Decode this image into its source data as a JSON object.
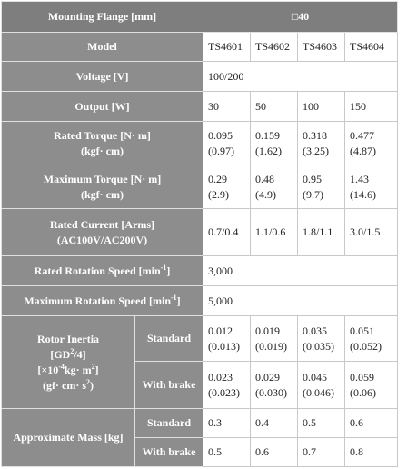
{
  "table": {
    "rows": [
      {
        "header": [
          [
            "Mounting Flange [mm]"
          ]
        ],
        "cells": [
          [
            "□40"
          ]
        ]
      },
      {
        "header": [
          [
            "Model"
          ]
        ],
        "cells": [
          [
            "TS4601"
          ],
          [
            "TS4602"
          ],
          [
            "TS4603"
          ],
          [
            "TS4604"
          ]
        ]
      },
      {
        "header": [
          [
            "Voltage [V]"
          ]
        ],
        "cells": [
          [
            "100/200"
          ]
        ]
      },
      {
        "header": [
          [
            "Output [W]"
          ]
        ],
        "cells": [
          [
            "30"
          ],
          [
            "50"
          ],
          [
            "100"
          ],
          [
            "150"
          ]
        ]
      },
      {
        "header": [
          [
            "Rated Torque [N· m]"
          ],
          [
            "(kgf· cm)"
          ]
        ],
        "cells": [
          [
            "0.095",
            "(0.97)"
          ],
          [
            "0.159",
            "(1.62)"
          ],
          [
            "0.318",
            "(3.25)"
          ],
          [
            "0.477",
            "(4.87)"
          ]
        ]
      },
      {
        "header": [
          [
            "Maximum Torque [N· m]"
          ],
          [
            "(kgf· cm)"
          ]
        ],
        "cells": [
          [
            "0.29",
            "(2.9)"
          ],
          [
            "0.48",
            "(4.9)"
          ],
          [
            "0.95",
            "(9.7)"
          ],
          [
            "1.43",
            "(14.6)"
          ]
        ]
      },
      {
        "header": [
          [
            "Rated Current [Arms]"
          ],
          [
            "(AC100V/AC200V)"
          ]
        ],
        "cells": [
          [
            "0.7/0.4"
          ],
          [
            "1.1/0.6"
          ],
          [
            "1.8/1.1"
          ],
          [
            "3.0/1.5"
          ]
        ]
      },
      {
        "header": [
          [
            "Rated Rotation Speed [min",
            {
              "sup": "-1"
            },
            "]"
          ]
        ],
        "cells": [
          [
            "3,000"
          ]
        ]
      },
      {
        "header": [
          [
            "Maximum Rotation Speed [min",
            {
              "sup": "-1"
            },
            "]"
          ]
        ],
        "cells": [
          [
            "5,000"
          ]
        ]
      },
      {
        "header": [
          [
            "Rotor Inertia"
          ],
          [
            "[GD",
            {
              "sup": "2"
            },
            "/4]"
          ],
          [
            "[×10",
            {
              "sup": "-4"
            },
            "kg· m",
            {
              "sup": "2"
            },
            "]"
          ],
          [
            "(gf· cm· s",
            {
              "sup": "2"
            },
            ")"
          ]
        ],
        "subrows": [
          {
            "sub": "Standard",
            "cells": [
              [
                "0.012",
                "(0.013)"
              ],
              [
                "0.019",
                "(0.019)"
              ],
              [
                "0.035",
                "(0.035)"
              ],
              [
                "0.051",
                "(0.052)"
              ]
            ]
          },
          {
            "sub": "With brake",
            "cells": [
              [
                "0.023",
                "(0.023)"
              ],
              [
                "0.029",
                "(0.030)"
              ],
              [
                "0.045",
                "(0.046)"
              ],
              [
                "0.059",
                "(0.06)"
              ]
            ]
          }
        ]
      },
      {
        "header": [
          [
            "Approximate Mass [kg]"
          ]
        ],
        "subrows": [
          {
            "sub": "Standard",
            "cells": [
              [
                "0.3"
              ],
              [
                "0.4"
              ],
              [
                "0.5"
              ],
              [
                "0.6"
              ]
            ]
          },
          {
            "sub": "With brake",
            "cells": [
              [
                "0.5"
              ],
              [
                "0.6"
              ],
              [
                "0.7"
              ],
              [
                "0.8"
              ]
            ]
          }
        ]
      }
    ]
  }
}
